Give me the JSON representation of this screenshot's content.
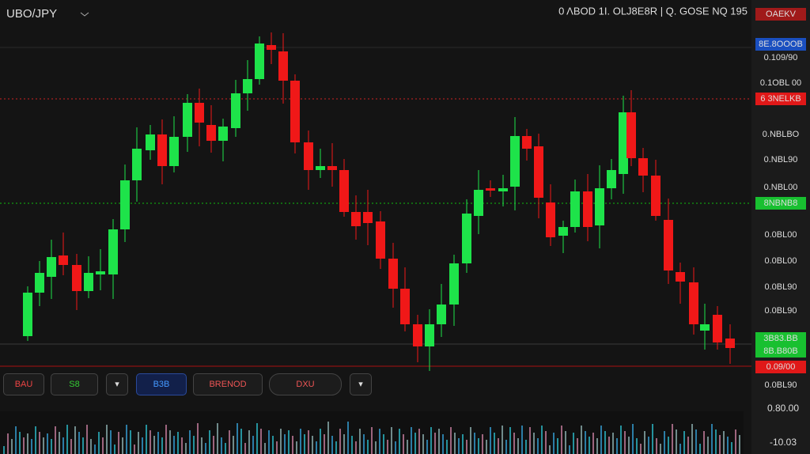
{
  "header": {
    "symbol": "UBO/JPY",
    "stats": "0 ΛBOD 1I. OLJ8E8R | Q. GOSE NQ 195"
  },
  "price_axis": {
    "labels": [
      "OAEKV",
      "8E.8OOOB",
      "0.109/90",
      "0.1OBL 00",
      "6 3NELKB",
      "0.NBLBO",
      "0.NBL90",
      "0.NBL00",
      "8NBNB8",
      "0.0BL00",
      "0.0BL00",
      "0.0BL90",
      "0.0BL90",
      "3B83.BB",
      "8B.B80B",
      "0.09/00",
      "0.0BL90"
    ]
  },
  "toolbar": {
    "buttons": [
      "BAU",
      "S8",
      "B3B",
      "BRENOD",
      "DXU"
    ]
  },
  "footer": {
    "price": "0.80.00",
    "volume": "-10.03"
  }
}
